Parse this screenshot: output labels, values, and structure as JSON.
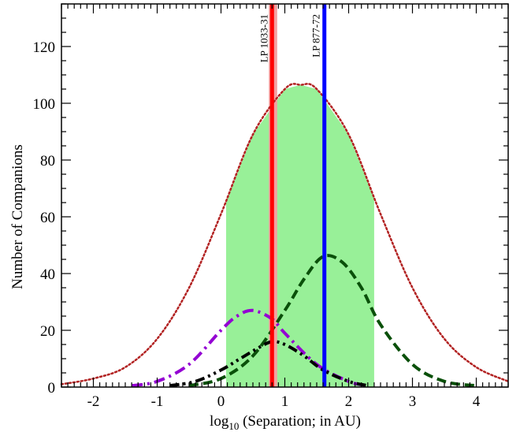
{
  "chart_data": {
    "type": "line",
    "xlabel": "log",
    "xlabel_sub": "10",
    "xlabel_rest": " (Separation; in AU)",
    "ylabel": "Number of Companions",
    "xlim": [
      -2.5,
      4.5
    ],
    "ylim": [
      0,
      135
    ],
    "xticks": [
      -2,
      -1,
      0,
      1,
      2,
      3,
      4
    ],
    "xtick_labels": [
      "-2",
      "-1",
      "0",
      "1",
      "2",
      "3",
      "4"
    ],
    "yticks": [
      0,
      20,
      40,
      60,
      80,
      100,
      120
    ],
    "ytick_labels": [
      "0",
      "20",
      "40",
      "60",
      "80",
      "100",
      "120"
    ],
    "grid": false,
    "shaded_region": {
      "x_range": [
        0.08,
        2.4
      ],
      "color": "#98f098",
      "description_series": "total"
    },
    "series": [
      {
        "key": "total",
        "style": "dotted",
        "color": "#b22222",
        "x": [
          -2.5,
          -2.0,
          -1.5,
          -1.0,
          -0.5,
          0.0,
          0.5,
          1.0,
          1.25,
          1.5,
          2.0,
          2.5,
          3.0,
          3.5,
          4.0,
          4.5
        ],
        "y": [
          1,
          3,
          7,
          17,
          35,
          61,
          89,
          105,
          106.5,
          105,
          89,
          61,
          35,
          17,
          7,
          2
        ]
      },
      {
        "key": "green-dashed",
        "style": "dashed",
        "color": "#0a500a",
        "x": [
          -0.5,
          0.0,
          0.5,
          1.0,
          1.3,
          1.6,
          1.9,
          2.2,
          2.5,
          3.0,
          3.5,
          4.0
        ],
        "y": [
          0.5,
          3,
          11,
          27,
          38,
          46,
          44,
          35,
          22,
          8,
          2,
          0.5
        ]
      },
      {
        "key": "purple-dashdot",
        "style": "dashdot",
        "color": "#9400d3",
        "x": [
          -1.4,
          -1.0,
          -0.5,
          0.0,
          0.25,
          0.5,
          0.8,
          1.0,
          1.5,
          2.0,
          2.3
        ],
        "y": [
          0.5,
          2,
          8,
          20,
          25,
          27,
          24,
          19,
          8,
          2,
          0.5
        ]
      },
      {
        "key": "black-dashdotdot",
        "style": "dashdotdot",
        "color": "#000000",
        "x": [
          -0.8,
          -0.4,
          0.0,
          0.3,
          0.6,
          0.8,
          1.0,
          1.3,
          1.6,
          2.0,
          2.3
        ],
        "y": [
          0.5,
          2,
          6,
          10,
          14,
          16,
          15,
          11,
          6,
          2,
          0.5
        ]
      }
    ],
    "vertical_markers": [
      {
        "label": "LP 1033-31",
        "x": 0.8,
        "color": "#ff0000",
        "band": [
          0.75,
          0.88
        ],
        "band_color": "#f4a0a0"
      },
      {
        "label": "LP 877-72",
        "x": 1.62,
        "color": "#0000ff"
      }
    ]
  }
}
